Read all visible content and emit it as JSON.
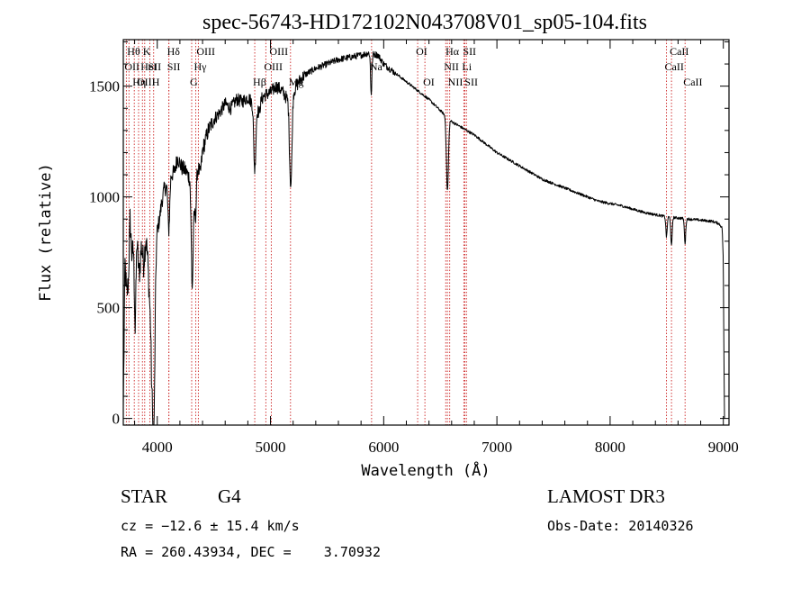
{
  "chart_data": {
    "type": "line",
    "title": "spec-56743-HD172102N043708V01_sp05-104.fits",
    "xlabel": "Wavelength (Å)",
    "ylabel": "Flux (relative)",
    "xlim": [
      3700,
      9050
    ],
    "ylim": [
      -30,
      1710
    ],
    "xticks": [
      4000,
      5000,
      6000,
      7000,
      8000,
      9000
    ],
    "yticks": [
      0,
      500,
      1000,
      1500
    ],
    "x_minor_step": 200,
    "y_minor_step": 100,
    "series": [
      {
        "name": "flux",
        "anchors": [
          [
            3700,
            50
          ],
          [
            3715,
            700
          ],
          [
            3730,
            550
          ],
          [
            3745,
            620
          ],
          [
            3760,
            900
          ],
          [
            3775,
            740
          ],
          [
            3790,
            760
          ],
          [
            3805,
            400
          ],
          [
            3820,
            800
          ],
          [
            3840,
            640
          ],
          [
            3860,
            780
          ],
          [
            3880,
            700
          ],
          [
            3900,
            820
          ],
          [
            3915,
            720
          ],
          [
            3935,
            500
          ],
          [
            3950,
            320
          ],
          [
            3965,
            700
          ],
          [
            3985,
            760
          ],
          [
            4000,
            850
          ],
          [
            4020,
            900
          ],
          [
            4040,
            980
          ],
          [
            4060,
            1030
          ],
          [
            4080,
            1050
          ],
          [
            4100,
            1080
          ],
          [
            4120,
            1100
          ],
          [
            4150,
            1110
          ],
          [
            4180,
            1180
          ],
          [
            4200,
            1150
          ],
          [
            4220,
            1130
          ],
          [
            4250,
            1120
          ],
          [
            4270,
            1100
          ],
          [
            4290,
            1080
          ],
          [
            4310,
            880
          ],
          [
            4330,
            1000
          ],
          [
            4350,
            1150
          ],
          [
            4380,
            1100
          ],
          [
            4400,
            1210
          ],
          [
            4450,
            1300
          ],
          [
            4500,
            1350
          ],
          [
            4550,
            1380
          ],
          [
            4600,
            1420
          ],
          [
            4650,
            1400
          ],
          [
            4700,
            1440
          ],
          [
            4750,
            1430
          ],
          [
            4800,
            1450
          ],
          [
            4850,
            1420
          ],
          [
            4900,
            1380
          ],
          [
            4920,
            1440
          ],
          [
            4950,
            1460
          ],
          [
            5000,
            1470
          ],
          [
            5050,
            1500
          ],
          [
            5100,
            1480
          ],
          [
            5150,
            1440
          ],
          [
            5200,
            1470
          ],
          [
            5250,
            1520
          ],
          [
            5300,
            1550
          ],
          [
            5400,
            1580
          ],
          [
            5500,
            1600
          ],
          [
            5600,
            1620
          ],
          [
            5700,
            1630
          ],
          [
            5800,
            1640
          ],
          [
            5870,
            1650
          ],
          [
            5950,
            1640
          ],
          [
            6000,
            1600
          ],
          [
            6100,
            1560
          ],
          [
            6200,
            1520
          ],
          [
            6300,
            1480
          ],
          [
            6400,
            1440
          ],
          [
            6500,
            1390
          ],
          [
            6600,
            1340
          ],
          [
            6700,
            1310
          ],
          [
            6800,
            1280
          ],
          [
            6900,
            1240
          ],
          [
            7000,
            1200
          ],
          [
            7100,
            1170
          ],
          [
            7200,
            1140
          ],
          [
            7300,
            1110
          ],
          [
            7400,
            1080
          ],
          [
            7500,
            1060
          ],
          [
            7600,
            1040
          ],
          [
            7700,
            1020
          ],
          [
            7800,
            1000
          ],
          [
            7900,
            980
          ],
          [
            8000,
            970
          ],
          [
            8100,
            960
          ],
          [
            8200,
            945
          ],
          [
            8300,
            930
          ],
          [
            8400,
            920
          ],
          [
            8500,
            910
          ],
          [
            8600,
            905
          ],
          [
            8700,
            900
          ],
          [
            8800,
            895
          ],
          [
            8900,
            890
          ],
          [
            8960,
            880
          ],
          [
            8990,
            860
          ],
          [
            9000,
            700
          ],
          [
            9005,
            300
          ],
          [
            9010,
            0
          ]
        ],
        "absorption_dips": [
          [
            3968,
            850,
            10
          ],
          [
            4102,
            230,
            8
          ],
          [
            4308,
            300,
            8
          ],
          [
            4340,
            150,
            8
          ],
          [
            4861,
            290,
            9
          ],
          [
            5172,
            230,
            8
          ],
          [
            5184,
            300,
            8
          ],
          [
            5890,
            180,
            6
          ],
          [
            6563,
            330,
            9
          ],
          [
            8498,
            90,
            6
          ],
          [
            8542,
            130,
            6
          ],
          [
            8662,
            110,
            6
          ]
        ]
      }
    ],
    "line_markers": [
      {
        "wavelength": 3727,
        "label": "OII",
        "row": 2
      },
      {
        "wavelength": 3750,
        "label": "Hθ",
        "row": 1
      },
      {
        "wavelength": 3797,
        "label": "Hη",
        "row": 3
      },
      {
        "wavelength": 3835,
        "label": "OIII",
        "row": 3
      },
      {
        "wavelength": 3869,
        "label": "HeI",
        "row": 2
      },
      {
        "wavelength": 3889,
        "label": "K",
        "row": 1
      },
      {
        "wavelength": 3934,
        "label": "SII",
        "row": 2
      },
      {
        "wavelength": 3968,
        "label": "H",
        "row": 3
      },
      {
        "wavelength": 4102,
        "label": "Hδ",
        "row": 1
      },
      {
        "wavelength": 4103,
        "label": "SII",
        "row": 2
      },
      {
        "wavelength": 4304,
        "label": "G",
        "row": 3
      },
      {
        "wavelength": 4340,
        "label": "Hγ",
        "row": 2
      },
      {
        "wavelength": 4363,
        "label": "OIII",
        "row": 1
      },
      {
        "wavelength": 4861,
        "label": "Hβ",
        "row": 3
      },
      {
        "wavelength": 4959,
        "label": "OIII",
        "row": 2
      },
      {
        "wavelength": 5007,
        "label": "OIII",
        "row": 1
      },
      {
        "wavelength": 5177,
        "label": "Mg",
        "row": 3
      },
      {
        "wavelength": 5893,
        "label": "Na",
        "row": 4
      },
      {
        "wavelength": 6300,
        "label": "OI",
        "row": 1
      },
      {
        "wavelength": 6364,
        "label": "OI",
        "row": 3
      },
      {
        "wavelength": 6548,
        "label": "NII",
        "row": 2
      },
      {
        "wavelength": 6563,
        "label": "Hα",
        "row": 1
      },
      {
        "wavelength": 6583,
        "label": "NII",
        "row": 3
      },
      {
        "wavelength": 6708,
        "label": "Li",
        "row": 2
      },
      {
        "wavelength": 6716,
        "label": "SII",
        "row": 1
      },
      {
        "wavelength": 6731,
        "label": "SII",
        "row": 3
      },
      {
        "wavelength": 8498,
        "label": "CaII",
        "row": 2
      },
      {
        "wavelength": 8542,
        "label": "CaII",
        "row": 1
      },
      {
        "wavelength": 8662,
        "label": "CaII",
        "row": 3
      }
    ],
    "marker_color": "#cc2222",
    "line_color": "#000000"
  },
  "info": {
    "class": "STAR",
    "subclass": "G4",
    "redshift": "cz = −12.6 ± 15.4 km/s",
    "coords": "RA = 260.43934, DEC =    3.70932",
    "survey": "LAMOST DR3",
    "obs_date": "Obs-Date: 20140326"
  }
}
